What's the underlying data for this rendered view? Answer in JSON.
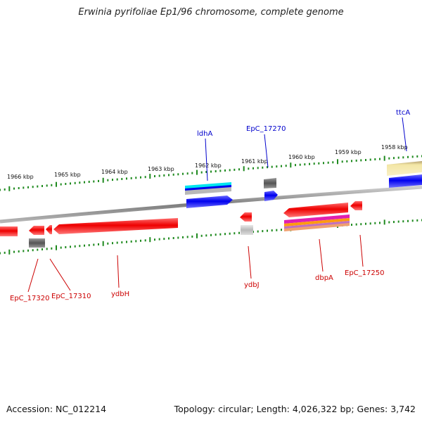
{
  "header": {
    "title": "Erwinia pyrifoliae Ep1/96 chromosome, complete genome"
  },
  "footer": {
    "accession": "Accession: NC_012214",
    "summary": "Topology: circular; Length: 4,026,322 bp; Genes: 3,742"
  },
  "colors": {
    "backbone": "#8a8a8a",
    "tick": "#1f8a1f",
    "forward_gene": "#0000ee",
    "reverse_gene": "#ee0000",
    "pseudo_gene": "#666666",
    "forward_label": "#0000cc",
    "reverse_label": "#cc0000"
  },
  "scale_labels": [
    "1966 kbp",
    "1965 kbp",
    "1964 kbp",
    "1963 kbp",
    "1962 kbp",
    "1961 kbp",
    "1960 kbp",
    "1959 kbp",
    "1958 kbp"
  ],
  "gene_labels": {
    "ldhA": "ldhA",
    "EpC_17270": "EpC_17270",
    "ttcA": "ttcA",
    "EpC_17320": "EpC_17320",
    "EpC_17310": "EpC_17310",
    "ydbH": "ydbH",
    "ydbJ": "ydbJ",
    "dbpA": "dbpA",
    "EpC_17250": "EpC_17250"
  }
}
